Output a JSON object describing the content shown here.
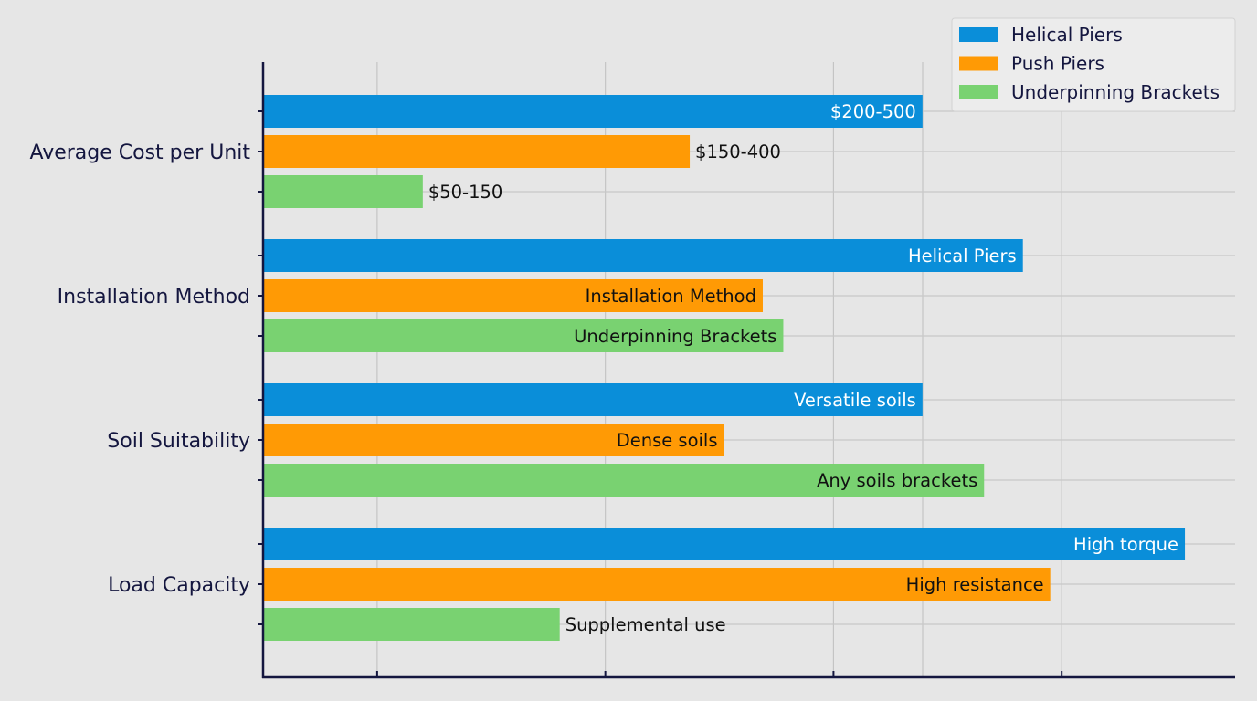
{
  "chart_data": {
    "type": "bar",
    "orientation": "horizontal",
    "title": "",
    "xlabel": "",
    "ylabel": "",
    "categories": [
      "Average Cost per Unit",
      "Installation Method",
      "Soil Suitability",
      "Load Capacity"
    ],
    "xlim": [
      0,
      4.26
    ],
    "x_tick_values": [
      0.5,
      1.5,
      2.5,
      3.5
    ],
    "x_tick_labels": [
      "",
      "",
      "",
      ""
    ],
    "grid": true,
    "legend_position": "top-right",
    "series": [
      {
        "name": "Helical Piers",
        "color": "#0a8ed9",
        "values": [
          2.89,
          3.33,
          2.89,
          4.04
        ],
        "labels": [
          "$200-500",
          "Helical Piers",
          "Versatile soils",
          "High torque"
        ],
        "label_inside": [
          true,
          true,
          true,
          true
        ],
        "label_color": "#ffffff"
      },
      {
        "name": "Push Piers",
        "color": "#ff9a05",
        "values": [
          1.87,
          2.19,
          2.02,
          3.45
        ],
        "labels": [
          "$150-400",
          "Installation Method",
          "Dense soils",
          "High resistance"
        ],
        "label_inside": [
          false,
          true,
          true,
          true
        ],
        "label_color": "#111111"
      },
      {
        "name": "Underpinning Brackets",
        "color": "#79d271",
        "values": [
          0.7,
          2.28,
          3.16,
          1.3
        ],
        "labels": [
          "$50-150",
          "Underpinning Brackets",
          "Any soils brackets",
          "Supplemental use"
        ],
        "label_inside": [
          false,
          true,
          true,
          false
        ],
        "label_color": "#111111"
      }
    ]
  }
}
